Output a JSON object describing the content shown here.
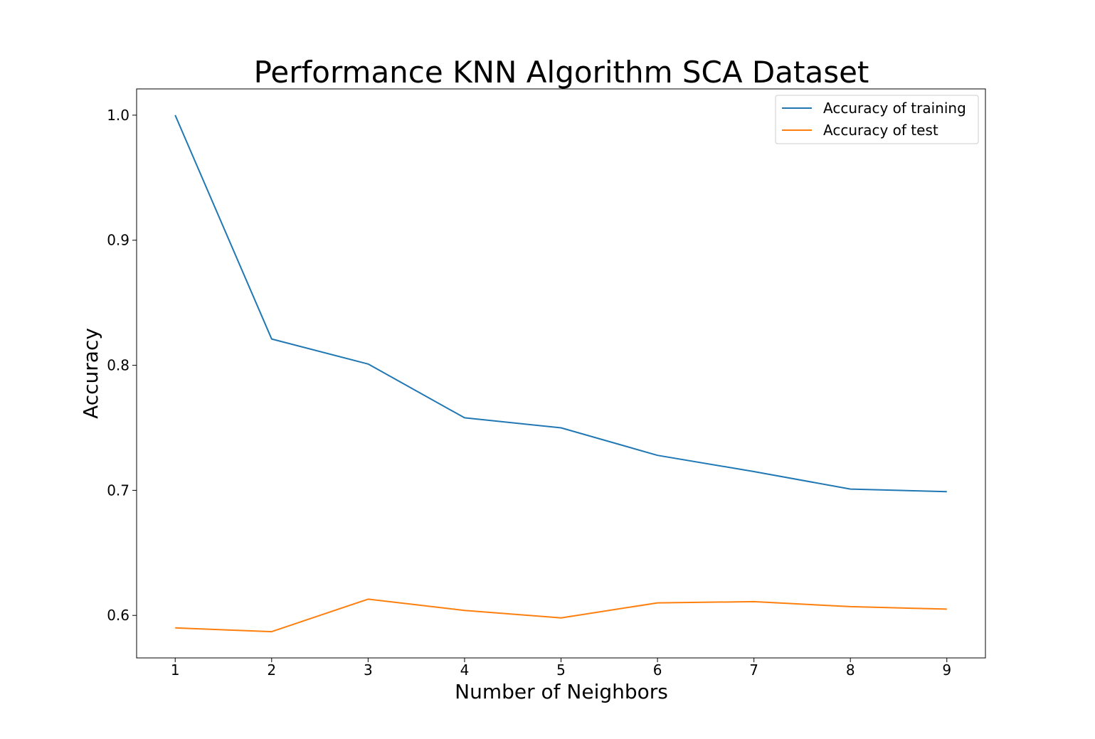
{
  "chart_data": {
    "type": "line",
    "title": "Performance KNN Algorithm SCA Dataset",
    "xlabel": "Number of Neighbors",
    "ylabel": "Accuracy",
    "x": [
      1,
      2,
      3,
      4,
      5,
      6,
      7,
      8,
      9
    ],
    "xticks": [
      "1",
      "2",
      "3",
      "4",
      "5",
      "6",
      "7",
      "8",
      "9"
    ],
    "yticks": [
      "0.6",
      "0.7",
      "0.8",
      "0.9",
      "1.0"
    ],
    "ytick_values": [
      0.6,
      0.7,
      0.8,
      0.9,
      1.0
    ],
    "xlim": [
      0.6,
      9.4
    ],
    "ylim": [
      0.566,
      1.021
    ],
    "grid": false,
    "legend_position": "top-right",
    "series": [
      {
        "name": "Accuracy of training",
        "color": "#1f77b4",
        "values": [
          1.0,
          0.821,
          0.801,
          0.758,
          0.75,
          0.728,
          0.715,
          0.701,
          0.699
        ]
      },
      {
        "name": "Accuracy of test",
        "color": "#ff7f0e",
        "values": [
          0.59,
          0.587,
          0.613,
          0.604,
          0.598,
          0.61,
          0.611,
          0.607,
          0.605
        ]
      }
    ]
  }
}
